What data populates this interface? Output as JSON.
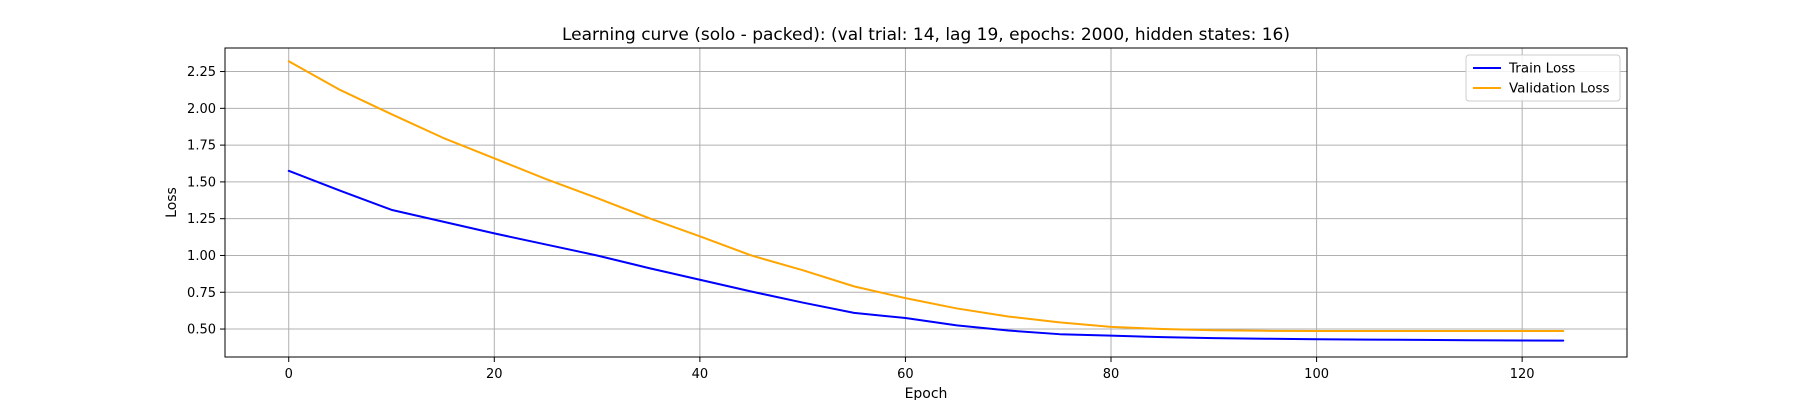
{
  "chart_data": {
    "type": "line",
    "title": "Learning curve (solo - packed): (val trial: 14, lag 19, epochs: 2000, hidden states: 16)",
    "xlabel": "Epoch",
    "ylabel": "Loss",
    "xlim": [
      -6.2,
      130.2
    ],
    "ylim": [
      0.31,
      2.41
    ],
    "xticks": [
      0,
      20,
      40,
      60,
      80,
      100,
      120
    ],
    "yticks": [
      0.5,
      0.75,
      1.0,
      1.25,
      1.5,
      1.75,
      2.0,
      2.25
    ],
    "ytick_labels": [
      "0.50",
      "0.75",
      "1.00",
      "1.25",
      "1.50",
      "1.75",
      "2.00",
      "2.25"
    ],
    "grid": true,
    "legend": "top-right",
    "series": [
      {
        "name": "Train Loss",
        "color": "#0000ff",
        "x": [
          0,
          5,
          10,
          15,
          20,
          25,
          30,
          35,
          40,
          45,
          50,
          55,
          60,
          65,
          70,
          75,
          80,
          85,
          90,
          95,
          100,
          105,
          110,
          115,
          120,
          124
        ],
        "y": [
          1.575,
          1.44,
          1.31,
          1.23,
          1.15,
          1.075,
          1.0,
          0.915,
          0.835,
          0.755,
          0.68,
          0.61,
          0.575,
          0.525,
          0.49,
          0.465,
          0.455,
          0.445,
          0.438,
          0.434,
          0.431,
          0.428,
          0.426,
          0.424,
          0.422,
          0.421
        ]
      },
      {
        "name": "Validation Loss",
        "color": "#ffa500",
        "x": [
          0,
          5,
          10,
          15,
          20,
          25,
          30,
          35,
          40,
          45,
          50,
          55,
          60,
          65,
          70,
          75,
          80,
          85,
          90,
          95,
          100,
          105,
          110,
          115,
          120,
          124
        ],
        "y": [
          2.32,
          2.125,
          1.96,
          1.8,
          1.66,
          1.52,
          1.39,
          1.255,
          1.13,
          1.0,
          0.9,
          0.79,
          0.71,
          0.64,
          0.585,
          0.545,
          0.515,
          0.5,
          0.492,
          0.488,
          0.487,
          0.487,
          0.487,
          0.487,
          0.487,
          0.487
        ]
      }
    ]
  }
}
